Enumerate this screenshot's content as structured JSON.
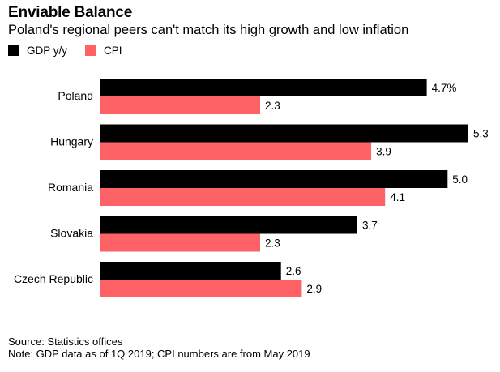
{
  "chart_data": {
    "type": "bar",
    "orientation": "horizontal",
    "title": "Enviable Balance",
    "subtitle": "Poland's regional peers can't match its high growth and low inflation",
    "categories": [
      "Poland",
      "Hungary",
      "Romania",
      "Slovakia",
      "Czech Republic"
    ],
    "series": [
      {
        "name": "GDP y/y",
        "color": "#000000",
        "values": [
          4.7,
          5.3,
          5.0,
          3.7,
          2.6
        ],
        "labels": [
          "4.7%",
          "5.3",
          "5.0",
          "3.7",
          "2.6"
        ]
      },
      {
        "name": "CPI",
        "color": "#ff6266",
        "values": [
          2.3,
          3.9,
          4.1,
          2.3,
          2.9
        ],
        "labels": [
          "2.3",
          "3.9",
          "4.1",
          "2.3",
          "2.9"
        ]
      }
    ],
    "xlim": [
      0,
      5.3
    ],
    "grid": false,
    "legend_position": "top-left"
  },
  "footer": {
    "source": "Source: Statistics offices",
    "note": "Note: GDP data as of 1Q 2019; CPI numbers are from May 2019"
  }
}
